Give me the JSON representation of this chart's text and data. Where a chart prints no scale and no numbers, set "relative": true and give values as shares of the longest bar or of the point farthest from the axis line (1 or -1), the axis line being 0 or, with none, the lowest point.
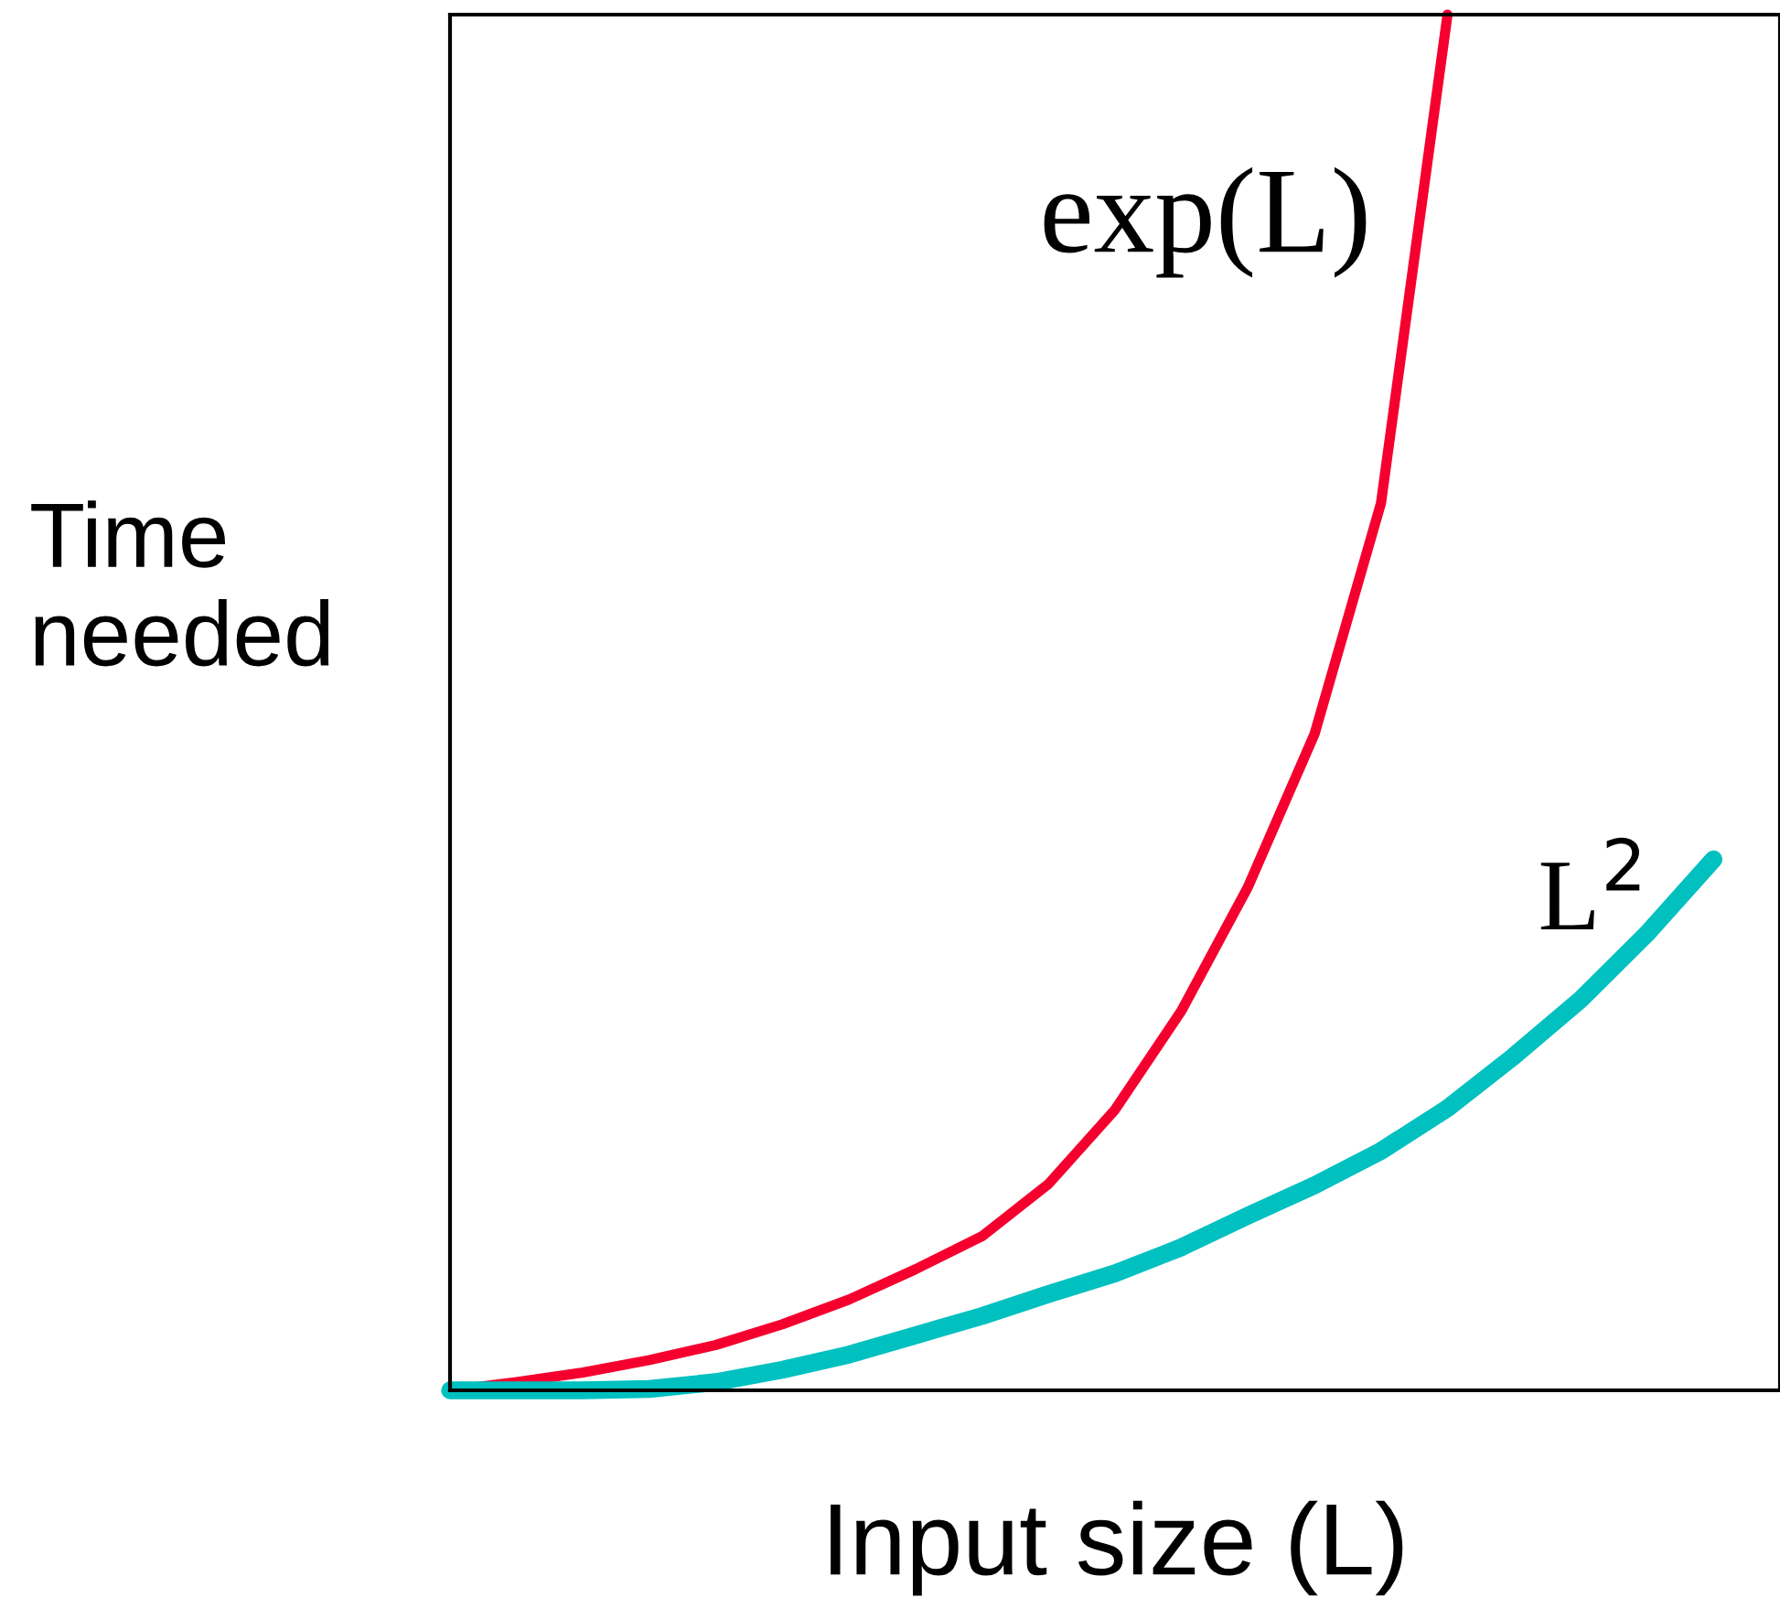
{
  "chart_data": {
    "type": "line",
    "relative": true,
    "xlabel": "Input size (L)",
    "ylabel": "Time\nneeded",
    "legend": false,
    "marker": "none",
    "line_style": "solid",
    "categories": [
      null,
      null,
      null,
      null,
      null,
      null,
      null,
      null,
      null,
      null,
      null,
      null,
      null,
      null,
      null,
      null,
      null,
      null,
      null,
      null,
      null
    ],
    "series": [
      {
        "name": "exp(L)",
        "color": "#f5002e",
        "values": [
          0,
          0.006,
          0.013,
          0.022,
          0.033,
          0.048,
          0.066,
          0.088,
          0.112,
          0.15,
          0.204,
          0.276,
          0.366,
          0.477,
          0.645,
          1,
          null,
          null,
          null,
          null,
          null
        ]
      },
      {
        "name": "L$^{2}$",
        "color": "#00c0c0",
        "values": [
          0,
          0,
          0,
          0.001,
          0.006,
          0.015,
          0.026,
          0.04,
          0.054,
          0.07,
          0.085,
          0.104,
          0.127,
          0.149,
          0.174,
          0.205,
          0.243,
          0.284,
          0.332,
          0.386,
          null
        ]
      }
    ]
  }
}
